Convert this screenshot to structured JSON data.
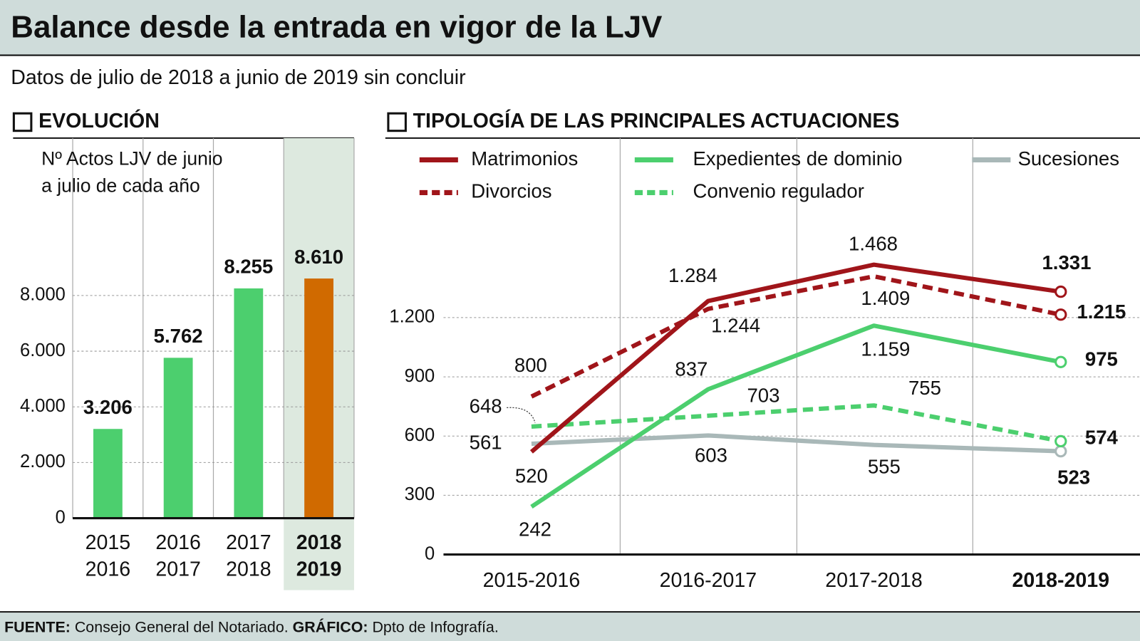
{
  "title": "Balance desde la entrada en vigor de la LJV",
  "subtitle": "Datos de julio de 2018 a junio de 2019 sin concluir",
  "chart_data": [
    {
      "type": "bar",
      "title": "EVOLUCIÓN",
      "subtitle": [
        "Nº Actos LJV de junio",
        "a julio de cada año"
      ],
      "categories": [
        [
          "2015",
          "2016"
        ],
        [
          "2016",
          "2017"
        ],
        [
          "2017",
          "2018"
        ],
        [
          "2018",
          "2019"
        ]
      ],
      "values": [
        3206,
        5762,
        8255,
        8610
      ],
      "value_labels": [
        "3.206",
        "5.762",
        "8.255",
        "8.610"
      ],
      "colors": [
        "#4ccf6e",
        "#4ccf6e",
        "#4ccf6e",
        "#d06a00"
      ],
      "ylim": [
        0,
        10000
      ],
      "yticks": [
        0,
        {
          "value": 2000,
          "label": "2.000"
        },
        {
          "value": 4000,
          "label": "4.000"
        },
        {
          "value": 6000,
          "label": "6.000"
        },
        {
          "value": 8000,
          "label": "8.000"
        }
      ],
      "grid": true
    },
    {
      "type": "line",
      "title": "TIPOLOGÍA DE LAS PRINCIPALES ACTUACIONES",
      "categories": [
        "2015-2016",
        "2016-2017",
        "2017-2018",
        "2018-2019"
      ],
      "series": [
        {
          "name": "Matrimonios",
          "color": "#a0151a",
          "dashed": false,
          "values": [
            520,
            1284,
            1468,
            1331
          ],
          "value_labels": [
            "520",
            "1.284",
            "1.468",
            "1.331"
          ]
        },
        {
          "name": "Divorcios",
          "color": "#a0151a",
          "dashed": true,
          "values": [
            800,
            1244,
            1409,
            1215
          ],
          "value_labels": [
            "800",
            "1.244",
            "1.409",
            "1.215"
          ]
        },
        {
          "name": "Expedientes de dominio",
          "color": "#4ccf6e",
          "dashed": false,
          "values": [
            242,
            837,
            1159,
            975
          ],
          "value_labels": [
            "242",
            "837",
            "1.159",
            "975"
          ]
        },
        {
          "name": "Convenio regulador",
          "color": "#4ccf6e",
          "dashed": true,
          "values": [
            648,
            703,
            755,
            574
          ],
          "value_labels": [
            "648",
            "703",
            "755",
            "574"
          ]
        },
        {
          "name": "Sucesiones",
          "color": "#a9b8b8",
          "dashed": false,
          "values": [
            561,
            603,
            555,
            523
          ],
          "value_labels": [
            "561",
            "603",
            "555",
            "523"
          ]
        }
      ],
      "ylim": [
        0,
        1500
      ],
      "yticks": [
        0,
        300,
        600,
        900,
        {
          "value": 1200,
          "label": "1.200"
        }
      ],
      "grid": true,
      "legend": "top"
    }
  ],
  "footer": {
    "source_label": "FUENTE:",
    "source": "Consejo General del Notariado.",
    "credit_label": "GRÁFICO:",
    "credit": "Dpto de Infografía."
  }
}
